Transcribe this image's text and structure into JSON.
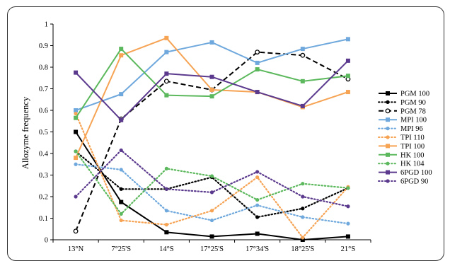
{
  "chart_data": {
    "type": "line",
    "ylabel": "Allozyme frequency",
    "ylim": [
      0,
      1
    ],
    "yticks": [
      "0",
      "0.1",
      "0.2",
      "0.3",
      "0.4",
      "0.5",
      "0.6",
      "0.7",
      "0.8",
      "0.9",
      "1"
    ],
    "categories": [
      "13°N",
      "7°25'S",
      "14°S",
      "17°25'S",
      "17°34'S",
      "18°25'S",
      "21°S"
    ],
    "grid": false,
    "legend_position": "right",
    "series": [
      {
        "name": "PGM 100",
        "color": "#000000",
        "dash": "solid",
        "marker": "square-filled",
        "values": [
          0.5,
          0.175,
          0.035,
          0.015,
          0.028,
          0.0,
          0.015
        ]
      },
      {
        "name": "PGM 90",
        "color": "#000000",
        "dash": "dotted",
        "marker": "circle-filled",
        "values": [
          0.41,
          0.235,
          0.235,
          0.29,
          0.105,
          0.145,
          0.24
        ]
      },
      {
        "name": "PGM 78",
        "color": "#000000",
        "dash": "dashed",
        "marker": "circle-open",
        "values": [
          0.04,
          0.56,
          0.735,
          0.695,
          0.87,
          0.855,
          0.745
        ]
      },
      {
        "name": "MPI 100",
        "color": "#6fa8dc",
        "dash": "solid",
        "marker": "square-filled",
        "values": [
          0.6,
          0.675,
          0.87,
          0.915,
          0.82,
          0.885,
          0.93
        ]
      },
      {
        "name": "MPI 96",
        "color": "#6fa8dc",
        "dash": "dotted",
        "marker": "circle-filled",
        "values": [
          0.35,
          0.325,
          0.135,
          0.09,
          0.16,
          0.105,
          0.075
        ]
      },
      {
        "name": "TPI 110",
        "color": "#f6a354",
        "dash": "dotted",
        "marker": "circle-filled",
        "values": [
          0.585,
          0.09,
          0.07,
          0.135,
          0.29,
          0.01,
          0.245
        ]
      },
      {
        "name": "TPI 100",
        "color": "#f6a354",
        "dash": "solid",
        "marker": "square-filled",
        "values": [
          0.38,
          0.855,
          0.935,
          0.695,
          0.685,
          0.615,
          0.685
        ]
      },
      {
        "name": "HK 100",
        "color": "#5cb85c",
        "dash": "solid",
        "marker": "square-filled",
        "values": [
          0.565,
          0.885,
          0.67,
          0.665,
          0.79,
          0.735,
          0.76
        ]
      },
      {
        "name": "HK 104",
        "color": "#5cb85c",
        "dash": "dotted",
        "marker": "circle-filled",
        "values": [
          0.41,
          0.12,
          0.33,
          0.295,
          0.185,
          0.26,
          0.24
        ]
      },
      {
        "name": "6PGD 100",
        "color": "#5b3a8e",
        "dash": "solid",
        "marker": "square-filled",
        "values": [
          0.775,
          0.555,
          0.77,
          0.755,
          0.685,
          0.62,
          0.83
        ]
      },
      {
        "name": "6PGD 90",
        "color": "#5b3a8e",
        "dash": "dotted",
        "marker": "circle-filled",
        "values": [
          0.2,
          0.415,
          0.235,
          0.22,
          0.315,
          0.2,
          0.155
        ]
      }
    ]
  }
}
